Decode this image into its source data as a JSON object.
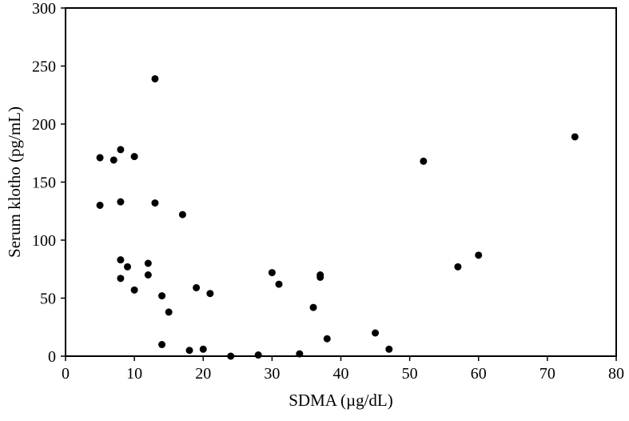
{
  "chart_data": {
    "type": "scatter",
    "title": "",
    "xlabel": "SDMA (µg/dL)",
    "ylabel": "Serum klotho (pg/mL)",
    "xlim": [
      0,
      80
    ],
    "ylim": [
      0,
      300
    ],
    "xticks": [
      0,
      10,
      20,
      30,
      40,
      50,
      60,
      70,
      80
    ],
    "yticks": [
      0,
      50,
      100,
      150,
      200,
      250,
      300
    ],
    "grid": false,
    "legend": "none",
    "marker_color": "#000000",
    "points": [
      {
        "x": 5,
        "y": 171
      },
      {
        "x": 5,
        "y": 130
      },
      {
        "x": 7,
        "y": 169
      },
      {
        "x": 8,
        "y": 178
      },
      {
        "x": 8,
        "y": 133
      },
      {
        "x": 8,
        "y": 83
      },
      {
        "x": 8,
        "y": 67
      },
      {
        "x": 9,
        "y": 77
      },
      {
        "x": 10,
        "y": 172
      },
      {
        "x": 10,
        "y": 57
      },
      {
        "x": 12,
        "y": 80
      },
      {
        "x": 12,
        "y": 70
      },
      {
        "x": 13,
        "y": 239
      },
      {
        "x": 13,
        "y": 132
      },
      {
        "x": 14,
        "y": 52
      },
      {
        "x": 14,
        "y": 10
      },
      {
        "x": 15,
        "y": 38
      },
      {
        "x": 17,
        "y": 122
      },
      {
        "x": 18,
        "y": 5
      },
      {
        "x": 19,
        "y": 59
      },
      {
        "x": 20,
        "y": 6
      },
      {
        "x": 21,
        "y": 54
      },
      {
        "x": 24,
        "y": 0
      },
      {
        "x": 28,
        "y": 1
      },
      {
        "x": 30,
        "y": 72
      },
      {
        "x": 31,
        "y": 62
      },
      {
        "x": 34,
        "y": 2
      },
      {
        "x": 36,
        "y": 42
      },
      {
        "x": 37,
        "y": 70
      },
      {
        "x": 37,
        "y": 68
      },
      {
        "x": 38,
        "y": 15
      },
      {
        "x": 45,
        "y": 20
      },
      {
        "x": 47,
        "y": 6
      },
      {
        "x": 52,
        "y": 168
      },
      {
        "x": 57,
        "y": 77
      },
      {
        "x": 60,
        "y": 87
      },
      {
        "x": 74,
        "y": 189
      }
    ]
  }
}
